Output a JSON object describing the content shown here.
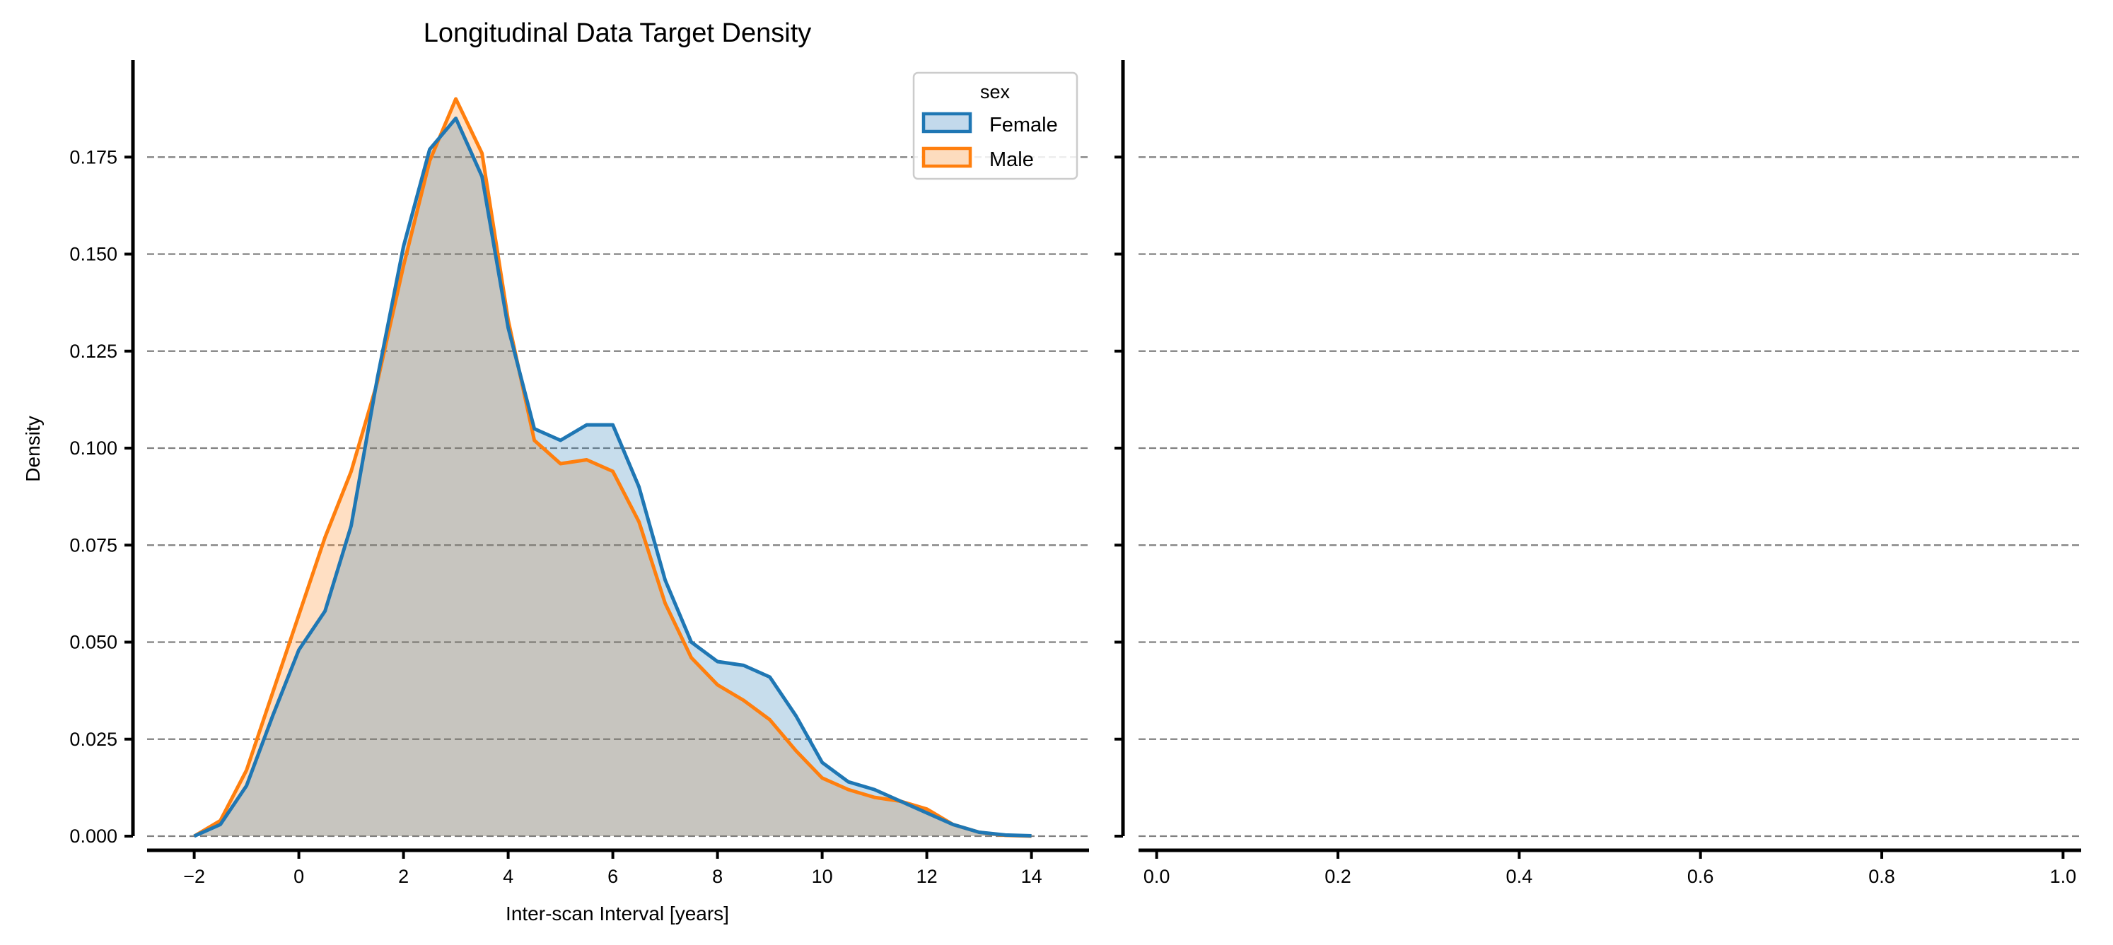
{
  "chart_data": [
    {
      "type": "area",
      "title": "Longitudinal Data Target Density",
      "xlabel": "Inter-scan Interval [years]",
      "ylabel": "Density",
      "xlim": [
        -2.9,
        15.1
      ],
      "ylim": [
        0,
        0.2
      ],
      "xticks": [
        -2,
        0,
        2,
        4,
        6,
        8,
        10,
        12,
        14
      ],
      "xtick_labels": [
        "−2",
        "0",
        "2",
        "4",
        "6",
        "8",
        "10",
        "12",
        "14"
      ],
      "yticks": [
        0,
        0.025,
        0.05,
        0.075,
        0.1,
        0.125,
        0.15,
        0.175
      ],
      "ytick_labels": [
        "0.000",
        "0.025",
        "0.050",
        "0.075",
        "0.100",
        "0.125",
        "0.150",
        "0.175"
      ],
      "grid": "horizontal-dashed",
      "legend": {
        "title": "sex",
        "placement": "top-right"
      },
      "series": [
        {
          "name": "Female",
          "color": "#1f77b4",
          "fill": "#c3d9ec",
          "x": [
            -2.0,
            -1.5,
            -1.0,
            -0.5,
            0.0,
            0.5,
            1.0,
            1.5,
            2.0,
            2.5,
            3.0,
            3.5,
            4.0,
            4.5,
            5.0,
            5.5,
            6.0,
            6.5,
            7.0,
            7.5,
            8.0,
            8.5,
            9.0,
            9.5,
            10.0,
            10.5,
            11.0,
            11.5,
            12.0,
            12.5,
            13.0,
            13.5,
            14.0
          ],
          "y": [
            0.0,
            0.003,
            0.013,
            0.031,
            0.048,
            0.058,
            0.08,
            0.118,
            0.152,
            0.177,
            0.185,
            0.17,
            0.131,
            0.105,
            0.102,
            0.106,
            0.106,
            0.09,
            0.066,
            0.05,
            0.045,
            0.044,
            0.041,
            0.031,
            0.019,
            0.014,
            0.012,
            0.009,
            0.006,
            0.003,
            0.001,
            0.0003,
            0.0001
          ]
        },
        {
          "name": "Male",
          "color": "#ff7f0e",
          "fill": "#fddcbe",
          "x": [
            -2.0,
            -1.5,
            -1.0,
            -0.5,
            0.0,
            0.5,
            1.0,
            1.5,
            2.0,
            2.5,
            3.0,
            3.5,
            4.0,
            4.5,
            5.0,
            5.5,
            6.0,
            6.5,
            7.0,
            7.5,
            8.0,
            8.5,
            9.0,
            9.5,
            10.0,
            10.5,
            11.0,
            11.5,
            12.0,
            12.5,
            13.0,
            13.5,
            14.0
          ],
          "y": [
            0.0,
            0.004,
            0.017,
            0.037,
            0.057,
            0.077,
            0.094,
            0.117,
            0.147,
            0.174,
            0.19,
            0.176,
            0.133,
            0.102,
            0.096,
            0.097,
            0.094,
            0.081,
            0.06,
            0.046,
            0.039,
            0.035,
            0.03,
            0.022,
            0.015,
            0.012,
            0.01,
            0.009,
            0.007,
            0.003,
            0.001,
            0.0002,
            0.0
          ]
        }
      ]
    },
    {
      "type": "line",
      "title": "",
      "xlabel": "",
      "ylabel": "",
      "xlim": [
        -0.02,
        1.02
      ],
      "ylim": [
        0,
        0.2
      ],
      "xticks": [
        0,
        0.2,
        0.4,
        0.6,
        0.8,
        1.0
      ],
      "xtick_labels": [
        "0.0",
        "0.2",
        "0.4",
        "0.6",
        "0.8",
        "1.0"
      ],
      "yticks": [
        0,
        0.025,
        0.05,
        0.075,
        0.1,
        0.125,
        0.15,
        0.175
      ],
      "grid": "horizontal-dashed",
      "series": []
    }
  ]
}
